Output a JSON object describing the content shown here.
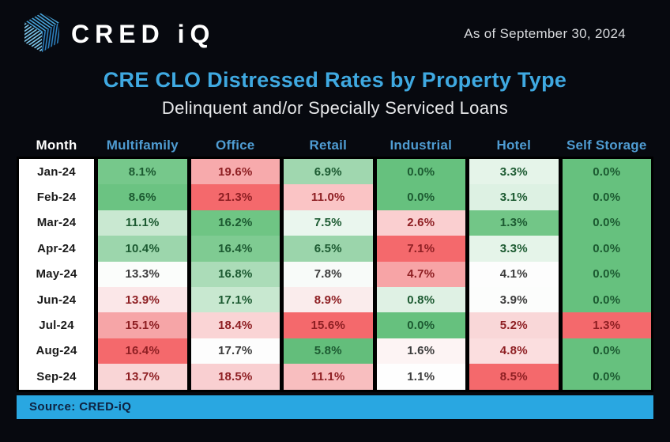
{
  "header": {
    "brand": "CRED iQ",
    "as_of": "As of September 30, 2024"
  },
  "footer": {
    "source": "Source: CRED-iQ"
  },
  "colors": {
    "page_bg": "#07090F",
    "accent_blue": "#29A7E1",
    "title_blue": "#3FA9E1",
    "column_header_blue": "#4F9CD2",
    "strong_green": "#63BE7B",
    "strong_red": "#F4696C",
    "logo_blue_light": "#7FCBEF",
    "logo_blue_mid": "#47A5DC",
    "logo_blue_dark": "#2C7FBE"
  },
  "chart_data": {
    "type": "heatmap",
    "title": "CRE CLO Distressed Rates by Property Type",
    "subtitle": "Delinquent and/or Specially Serviced Loans",
    "row_header_label": "Month",
    "columns": [
      "Multifamily",
      "Office",
      "Retail",
      "Industrial",
      "Hotel",
      "Self Storage"
    ],
    "rows": [
      "Jan-24",
      "Feb-24",
      "Mar-24",
      "Apr-24",
      "May-24",
      "Jun-24",
      "Jul-24",
      "Aug-24",
      "Sep-24"
    ],
    "value_format": "percent_1dp",
    "color_scale": "red-white-green 3-color scale applied per column",
    "values_pct": [
      [
        8.1,
        19.6,
        6.9,
        0.0,
        3.3,
        0.0
      ],
      [
        8.6,
        21.3,
        11.0,
        0.0,
        3.1,
        0.0
      ],
      [
        11.1,
        16.2,
        7.5,
        2.6,
        1.3,
        0.0
      ],
      [
        10.4,
        16.4,
        6.5,
        7.1,
        3.3,
        0.0
      ],
      [
        13.3,
        16.8,
        7.8,
        4.7,
        4.1,
        0.0
      ],
      [
        13.9,
        17.1,
        8.9,
        0.8,
        3.9,
        0.0
      ],
      [
        15.1,
        18.4,
        15.6,
        0.0,
        5.2,
        1.3
      ],
      [
        16.4,
        17.7,
        5.8,
        1.6,
        4.8,
        0.0
      ],
      [
        13.7,
        18.5,
        11.1,
        1.1,
        8.5,
        0.0
      ]
    ],
    "cell_colors": [
      [
        "#76C88B",
        "#F7AAAC",
        "#A0D7AF",
        "#66C17E",
        "#E5F4E9",
        "#66C17E"
      ],
      [
        "#6BC382",
        "#F4696C",
        "#FAC4C5",
        "#66C17E",
        "#DDF1E3",
        "#66C17E"
      ],
      [
        "#C9E8D1",
        "#6FC584",
        "#EAF6EE",
        "#FACFD0",
        "#72C687",
        "#66C17E"
      ],
      [
        "#9CD6AC",
        "#7FCB92",
        "#9BD5AB",
        "#F4696C",
        "#E5F4E9",
        "#66C17E"
      ],
      [
        "#FBFDFB",
        "#ABDCB8",
        "#F8FBF9",
        "#F7A4A6",
        "#FDFDFD",
        "#66C17E"
      ],
      [
        "#FBE7E8",
        "#C8E8D0",
        "#FAECEC",
        "#DFF1E4",
        "#FCFDFC",
        "#66C17E"
      ],
      [
        "#F6A5A7",
        "#FAD4D5",
        "#F4696C",
        "#66C17E",
        "#F9D7D8",
        "#F4696C"
      ],
      [
        "#F4696C",
        "#FDFDFD",
        "#63BE7B",
        "#FDF4F4",
        "#FBDEDF",
        "#66C17E"
      ],
      [
        "#F9D5D6",
        "#F9CFD1",
        "#F8BEBF",
        "#FEFEFE",
        "#F4696C",
        "#66C17E"
      ]
    ]
  }
}
